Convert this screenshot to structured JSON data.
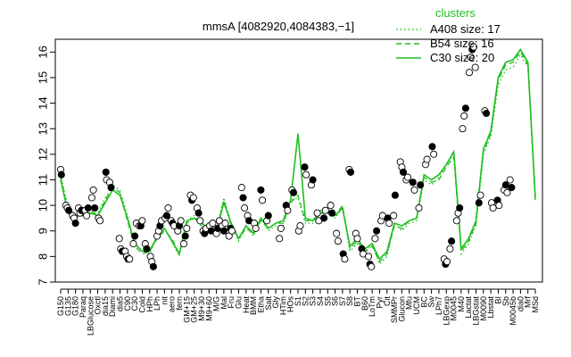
{
  "chart_data": {
    "type": "line",
    "title": "mmsA [4082920,4084383,−1]",
    "xlabel": "",
    "ylabel": "",
    "ylim": [
      7,
      16.5
    ],
    "yticks": [
      7,
      8,
      9,
      10,
      11,
      12,
      13,
      14,
      15,
      16
    ],
    "grid": false,
    "legend": {
      "title": "clusters",
      "placement": "top-right",
      "entries": [
        {
          "label": "A408 size: 17",
          "style": "dotted"
        },
        {
          "label": "B54 size: 16",
          "style": "dashed"
        },
        {
          "label": "C30 size: 20",
          "style": "solid"
        }
      ]
    },
    "xtick_labels": [
      "G150",
      "G135",
      "G180",
      "Paraq",
      "LBGlucose",
      "Oxctl",
      "dia15",
      "Diami",
      "dia5",
      "C90",
      "C30",
      "Cold",
      "HPh",
      "LPh",
      "nit",
      "aero",
      "fern",
      "GM+15",
      "GM+25",
      "M9+30",
      "M9+60",
      "M/G",
      "Mal",
      "Fru",
      "Glu",
      "Heat",
      "BMM",
      "Etha",
      "Salt",
      "Gly",
      "HTim",
      "HOs",
      "S1",
      "S2",
      "S3",
      "S4",
      "S5",
      "S6",
      "S7",
      "S8",
      "BT",
      "B60",
      "LoTm",
      "Pyr",
      "Cit",
      "SMMPr",
      "Glucon",
      "Mfu",
      "UCM",
      "BC",
      "Sw",
      "LPh7",
      "LBGexp",
      "M0045",
      "M40",
      "Lactat",
      "LBGstat",
      "M0090",
      "Lbstat",
      "BI",
      "Sb",
      "M0045b",
      "dia0",
      "Mrf",
      "MSd"
    ],
    "series": [
      {
        "name": "A408",
        "style": "dotted",
        "values": [
          11.2,
          9.9,
          9.6,
          9.6,
          9.7,
          9.7,
          10.3,
          10.8,
          10.6,
          9.6,
          8.5,
          8.2,
          8.1,
          8.8,
          9.1,
          8.6,
          8.0,
          9.4,
          9.6,
          9.3,
          9.2,
          9.1,
          10.3,
          9.3,
          8.6,
          9.2,
          8.8,
          9.5,
          9.0,
          9.2,
          9.2,
          10.2,
          10.3,
          9.3,
          9.3,
          9.7,
          9.7,
          9.5,
          9.9,
          8.2,
          8.5,
          8.1,
          8.5,
          7.7,
          8.0,
          9.3,
          9.0,
          9.3,
          9.4,
          11.0,
          10.8,
          11.1,
          11.6,
          12.0,
          8.1,
          8.5,
          9.2,
          12.0,
          12.7,
          14.7,
          15.3,
          15.4,
          15.9,
          15.4,
          10.1
        ]
      },
      {
        "name": "B54",
        "style": "dashed",
        "values": [
          11.1,
          9.8,
          9.5,
          9.7,
          9.8,
          9.6,
          10.2,
          10.7,
          10.5,
          9.4,
          8.4,
          8.1,
          8.2,
          8.7,
          9.0,
          8.7,
          8.1,
          9.3,
          9.5,
          9.2,
          9.1,
          9.0,
          10.2,
          9.2,
          8.7,
          9.1,
          8.9,
          9.4,
          9.1,
          9.3,
          9.3,
          10.1,
          10.4,
          9.4,
          9.4,
          9.8,
          9.8,
          9.6,
          10.0,
          8.3,
          8.6,
          8.2,
          8.4,
          7.8,
          8.1,
          9.2,
          9.1,
          9.4,
          9.5,
          11.1,
          10.9,
          11.0,
          11.5,
          11.9,
          8.2,
          8.6,
          9.3,
          12.1,
          12.8,
          14.9,
          15.5,
          15.6,
          16.0,
          15.5,
          10.2
        ]
      },
      {
        "name": "C30",
        "style": "solid",
        "values": [
          11.0,
          9.7,
          9.6,
          9.6,
          9.7,
          9.6,
          10.1,
          10.6,
          10.4,
          9.5,
          8.5,
          8.2,
          8.2,
          8.8,
          9.1,
          8.6,
          8.1,
          9.4,
          9.5,
          9.3,
          9.1,
          9.0,
          10.1,
          9.3,
          8.7,
          9.2,
          8.9,
          9.5,
          9.1,
          9.3,
          9.4,
          10.2,
          12.8,
          9.5,
          9.4,
          9.7,
          9.7,
          9.6,
          9.9,
          8.4,
          8.7,
          8.3,
          8.5,
          7.9,
          8.2,
          9.3,
          9.2,
          9.4,
          9.5,
          11.2,
          11.0,
          11.2,
          11.6,
          12.1,
          8.3,
          8.7,
          9.4,
          12.2,
          12.9,
          15.0,
          15.6,
          15.7,
          16.1,
          15.6,
          10.3
        ]
      }
    ],
    "points": [
      [
        0.0,
        11.4
      ],
      [
        0.1,
        11.2
      ],
      [
        0.7,
        10.0
      ],
      [
        0.9,
        9.9
      ],
      [
        1.1,
        9.8
      ],
      [
        1.6,
        9.6
      ],
      [
        1.8,
        9.5
      ],
      [
        2.0,
        9.3
      ],
      [
        2.4,
        9.9
      ],
      [
        2.6,
        9.7
      ],
      [
        2.8,
        9.8
      ],
      [
        3.3,
        9.8
      ],
      [
        3.5,
        9.6
      ],
      [
        3.7,
        9.9
      ],
      [
        4.2,
        10.3
      ],
      [
        4.4,
        10.6
      ],
      [
        4.6,
        9.9
      ],
      [
        5.1,
        9.5
      ],
      [
        5.3,
        9.4
      ],
      [
        6.1,
        11.3
      ],
      [
        6.2,
        11.0
      ],
      [
        6.6,
        10.9
      ],
      [
        6.8,
        10.7
      ],
      [
        7.9,
        8.7
      ],
      [
        8.1,
        8.3
      ],
      [
        8.3,
        8.2
      ],
      [
        8.7,
        8.2
      ],
      [
        8.9,
        8.0
      ],
      [
        9.1,
        7.9
      ],
      [
        9.3,
        7.9
      ],
      [
        9.8,
        8.5
      ],
      [
        10.0,
        8.8
      ],
      [
        10.2,
        9.3
      ],
      [
        10.6,
        9.2
      ],
      [
        10.8,
        9.2
      ],
      [
        11.0,
        9.4
      ],
      [
        11.4,
        8.5
      ],
      [
        11.6,
        8.3
      ],
      [
        12.1,
        8.0
      ],
      [
        12.3,
        7.8
      ],
      [
        12.5,
        7.6
      ],
      [
        13.0,
        8.8
      ],
      [
        13.2,
        9.0
      ],
      [
        13.4,
        9.2
      ],
      [
        13.6,
        9.4
      ],
      [
        14.1,
        9.5
      ],
      [
        14.3,
        9.6
      ],
      [
        14.5,
        9.9
      ],
      [
        14.9,
        9.4
      ],
      [
        15.1,
        9.3
      ],
      [
        15.3,
        9.2
      ],
      [
        15.8,
        9.0
      ],
      [
        16.0,
        9.2
      ],
      [
        16.2,
        9.4
      ],
      [
        16.6,
        8.5
      ],
      [
        16.8,
        8.8
      ],
      [
        17.0,
        9.1
      ],
      [
        17.5,
        10.4
      ],
      [
        17.7,
        10.2
      ],
      [
        17.9,
        10.3
      ],
      [
        18.4,
        9.9
      ],
      [
        18.6,
        9.7
      ],
      [
        18.8,
        9.4
      ],
      [
        19.2,
        9.0
      ],
      [
        19.4,
        8.9
      ],
      [
        19.6,
        9.1
      ],
      [
        20.1,
        9.2
      ],
      [
        20.3,
        9.0
      ],
      [
        20.5,
        9.3
      ],
      [
        21.0,
        8.9
      ],
      [
        21.2,
        9.1
      ],
      [
        21.4,
        9.4
      ],
      [
        21.8,
        9.2
      ],
      [
        22.0,
        9.0
      ],
      [
        22.2,
        9.3
      ],
      [
        22.7,
        8.8
      ],
      [
        22.9,
        9.1
      ],
      [
        23.1,
        9.0
      ],
      [
        24.4,
        10.7
      ],
      [
        24.6,
        10.3
      ],
      [
        24.8,
        9.9
      ],
      [
        25.2,
        9.6
      ],
      [
        25.4,
        9.4
      ],
      [
        26.1,
        9.3
      ],
      [
        26.3,
        9.1
      ],
      [
        27.0,
        10.6
      ],
      [
        27.2,
        10.2
      ],
      [
        27.8,
        9.4
      ],
      [
        28.0,
        9.6
      ],
      [
        29.5,
        8.7
      ],
      [
        29.7,
        9.1
      ],
      [
        30.4,
        10.0
      ],
      [
        30.6,
        9.8
      ],
      [
        31.2,
        10.6
      ],
      [
        31.4,
        10.5
      ],
      [
        32.1,
        9.0
      ],
      [
        32.3,
        9.2
      ],
      [
        32.9,
        11.5
      ],
      [
        33.1,
        11.2
      ],
      [
        33.8,
        10.8
      ],
      [
        34.0,
        11.0
      ],
      [
        34.6,
        9.7
      ],
      [
        34.8,
        9.4
      ],
      [
        35.5,
        9.5
      ],
      [
        35.7,
        9.8
      ],
      [
        36.4,
        10.0
      ],
      [
        36.6,
        9.7
      ],
      [
        37.2,
        8.9
      ],
      [
        37.4,
        8.6
      ],
      [
        38.1,
        8.1
      ],
      [
        38.3,
        7.9
      ],
      [
        38.9,
        11.4
      ],
      [
        39.1,
        11.3
      ],
      [
        39.8,
        8.9
      ],
      [
        40.0,
        8.7
      ],
      [
        40.6,
        8.3
      ],
      [
        40.8,
        8.1
      ],
      [
        41.5,
        8.0
      ],
      [
        41.7,
        7.7
      ],
      [
        41.9,
        7.6
      ],
      [
        42.4,
        8.7
      ],
      [
        42.6,
        9.0
      ],
      [
        43.2,
        9.4
      ],
      [
        43.4,
        9.6
      ],
      [
        44.1,
        9.5
      ],
      [
        44.3,
        9.3
      ],
      [
        44.9,
        9.6
      ],
      [
        45.1,
        10.4
      ],
      [
        45.8,
        11.7
      ],
      [
        46.0,
        11.5
      ],
      [
        46.2,
        11.3
      ],
      [
        46.6,
        11.0
      ],
      [
        46.8,
        11.1
      ],
      [
        47.5,
        10.9
      ],
      [
        47.7,
        10.6
      ],
      [
        48.3,
        9.9
      ],
      [
        48.5,
        10.8
      ],
      [
        49.2,
        11.6
      ],
      [
        49.4,
        11.8
      ],
      [
        50.1,
        12.3
      ],
      [
        50.3,
        12.0
      ],
      [
        51.7,
        7.9
      ],
      [
        51.9,
        7.7
      ],
      [
        52.1,
        7.8
      ],
      [
        52.5,
        8.3
      ],
      [
        52.7,
        8.6
      ],
      [
        53.4,
        9.4
      ],
      [
        53.6,
        9.7
      ],
      [
        53.8,
        9.9
      ],
      [
        54.2,
        13.0
      ],
      [
        54.4,
        13.5
      ],
      [
        54.6,
        13.8
      ],
      [
        55.1,
        15.2
      ],
      [
        55.3,
        15.8
      ],
      [
        55.5,
        16.1
      ],
      [
        55.7,
        16.2
      ],
      [
        55.9,
        15.4
      ],
      [
        56.4,
        10.1
      ],
      [
        56.6,
        10.4
      ],
      [
        57.2,
        13.7
      ],
      [
        57.4,
        13.6
      ],
      [
        58.1,
        10.1
      ],
      [
        58.3,
        9.9
      ],
      [
        58.9,
        10.2
      ],
      [
        59.1,
        10.0
      ],
      [
        59.8,
        10.6
      ],
      [
        60.0,
        10.8
      ],
      [
        60.2,
        10.5
      ],
      [
        60.6,
        11.0
      ],
      [
        60.8,
        10.7
      ]
    ]
  }
}
